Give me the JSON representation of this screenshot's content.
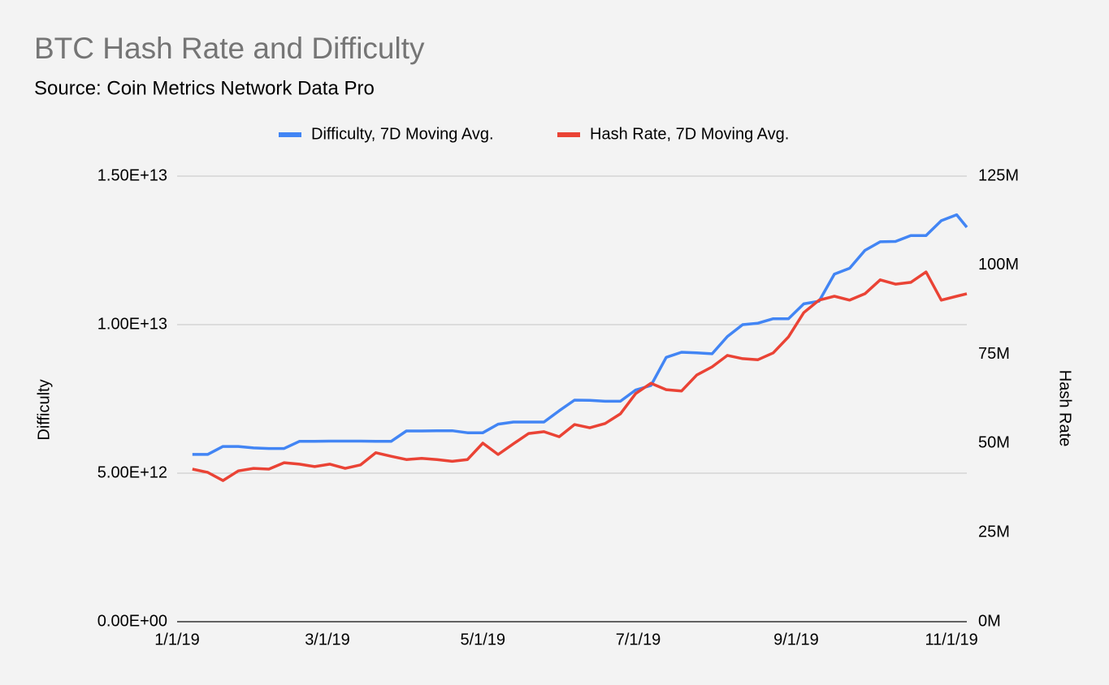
{
  "chart_data": {
    "type": "line",
    "title": "BTC Hash Rate and Difficulty",
    "subtitle": "Source: Coin Metrics Network Data Pro",
    "ylabel": "Difficulty",
    "y2label": "Hash Rate",
    "x": [
      "2019-01-07",
      "2019-01-13",
      "2019-01-19",
      "2019-01-25",
      "2019-01-31",
      "2019-02-06",
      "2019-02-12",
      "2019-02-18",
      "2019-02-24",
      "2019-03-02",
      "2019-03-08",
      "2019-03-14",
      "2019-03-20",
      "2019-03-26",
      "2019-04-01",
      "2019-04-07",
      "2019-04-13",
      "2019-04-19",
      "2019-04-25",
      "2019-05-01",
      "2019-05-07",
      "2019-05-13",
      "2019-05-19",
      "2019-05-25",
      "2019-05-31",
      "2019-06-06",
      "2019-06-12",
      "2019-06-18",
      "2019-06-24",
      "2019-06-30",
      "2019-07-06",
      "2019-07-12",
      "2019-07-18",
      "2019-07-24",
      "2019-07-30",
      "2019-08-05",
      "2019-08-11",
      "2019-08-17",
      "2019-08-23",
      "2019-08-29",
      "2019-09-04",
      "2019-09-10",
      "2019-09-16",
      "2019-09-22",
      "2019-09-28",
      "2019-10-04",
      "2019-10-10",
      "2019-10-16",
      "2019-10-22",
      "2019-10-28",
      "2019-11-03",
      "2019-11-07"
    ],
    "series": [
      {
        "name": "Difficulty, 7D Moving Avg.",
        "color": "#4285f4",
        "axis": "y",
        "values": [
          5630000000000.0,
          5630000000000.0,
          5900000000000.0,
          5900000000000.0,
          5850000000000.0,
          5830000000000.0,
          5830000000000.0,
          6070000000000.0,
          6070000000000.0,
          6080000000000.0,
          6080000000000.0,
          6080000000000.0,
          6070000000000.0,
          6070000000000.0,
          6420000000000.0,
          6420000000000.0,
          6430000000000.0,
          6430000000000.0,
          6360000000000.0,
          6360000000000.0,
          6650000000000.0,
          6720000000000.0,
          6720000000000.0,
          6720000000000.0,
          7100000000000.0,
          7460000000000.0,
          7450000000000.0,
          7420000000000.0,
          7420000000000.0,
          7800000000000.0,
          7950000000000.0,
          8900000000000.0,
          9070000000000.0,
          9050000000000.0,
          9020000000000.0,
          9600000000000.0,
          10000000000000.0,
          10050000000000.0,
          10200000000000.0,
          10200000000000.0,
          10700000000000.0,
          10790000000000.0,
          11700000000000.0,
          11900000000000.0,
          12500000000000.0,
          12790000000000.0,
          12800000000000.0,
          13000000000000.0,
          13000000000000.0,
          13500000000000.0,
          13700000000000.0,
          13280000000000.0
        ]
      },
      {
        "name": "Hash Rate, 7D Moving Avg.",
        "color": "#ea4335",
        "axis": "y2",
        "values": [
          42800000.0,
          41900000.0,
          39600000.0,
          42300000.0,
          43000000.0,
          42800000.0,
          44600000.0,
          44200000.0,
          43500000.0,
          44200000.0,
          43000000.0,
          44000000.0,
          47400000.0,
          46400000.0,
          45500000.0,
          45800000.0,
          45500000.0,
          45000000.0,
          45500000.0,
          50100000.0,
          46900000.0,
          49900000.0,
          52800000.0,
          53300000.0,
          51900000.0,
          55300000.0,
          54400000.0,
          55600000.0,
          58300000.0,
          64000000.0,
          66900000.0,
          65100000.0,
          64700000.0,
          69200000.0,
          71500000.0,
          74700000.0,
          73800000.0,
          73500000.0,
          75400000.0,
          79900000.0,
          86700000.0,
          90200000.0,
          91300000.0,
          90200000.0,
          92000000.0,
          95900000.0,
          94700000.0,
          95200000.0,
          98100000.0,
          90200000.0,
          91300000.0,
          92000000.0
        ]
      }
    ],
    "xlim": [
      "2019-01-01",
      "2019-11-07"
    ],
    "xticks": [
      {
        "value": "2019-01-01",
        "label": "1/1/19"
      },
      {
        "value": "2019-03-01",
        "label": "3/1/19"
      },
      {
        "value": "2019-05-01",
        "label": "5/1/19"
      },
      {
        "value": "2019-07-01",
        "label": "7/1/19"
      },
      {
        "value": "2019-09-01",
        "label": "9/1/19"
      },
      {
        "value": "2019-11-01",
        "label": "11/1/19"
      }
    ],
    "ylim": [
      0,
      15000000000000.0
    ],
    "yticks": [
      {
        "value": 0,
        "label": "0.00E+00"
      },
      {
        "value": 5000000000000.0,
        "label": "5.00E+12"
      },
      {
        "value": 10000000000000.0,
        "label": "1.00E+13"
      },
      {
        "value": 15000000000000.0,
        "label": "1.50E+13"
      }
    ],
    "y2lim": [
      0,
      125000000
    ],
    "y2ticks": [
      {
        "value": 0,
        "label": "0M"
      },
      {
        "value": 25000000,
        "label": "25M"
      },
      {
        "value": 50000000,
        "label": "50M"
      },
      {
        "value": 75000000,
        "label": "75M"
      },
      {
        "value": 100000000,
        "label": "100M"
      },
      {
        "value": 125000000,
        "label": "125M"
      }
    ],
    "grid": true,
    "legend": "top"
  }
}
